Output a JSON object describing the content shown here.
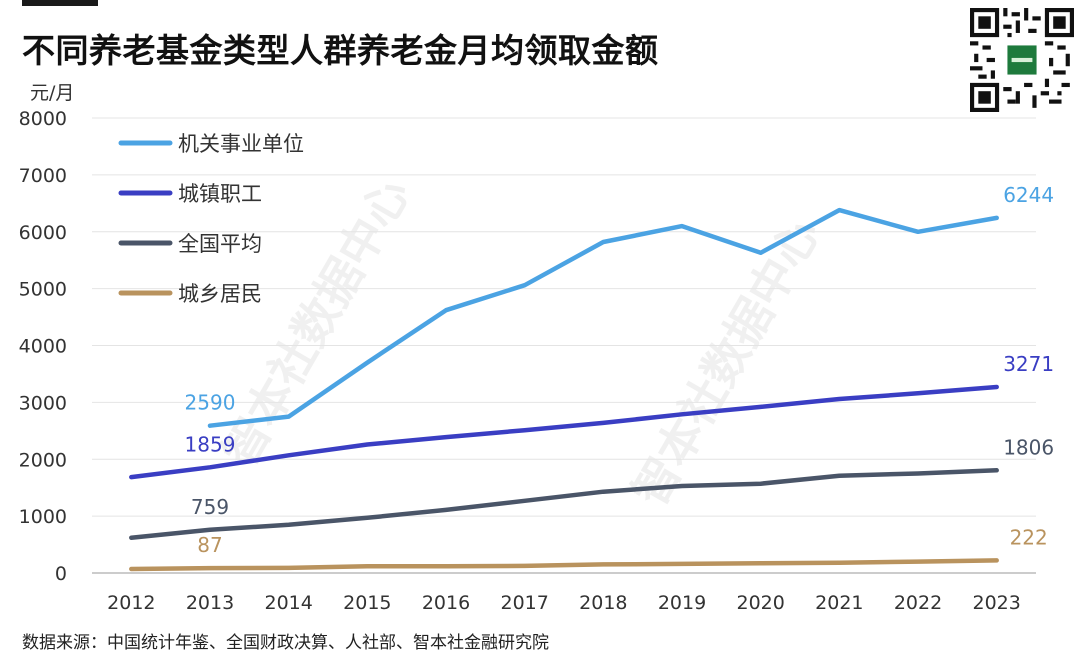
{
  "title": "不同养老基金类型人群养老金月均领取金额",
  "unit_label": "元/月",
  "source": "数据来源：中国统计年鉴、全国财政决算、人社部、智本社金融研究院",
  "watermark": "智本社数据中心",
  "chart_data": {
    "type": "line",
    "x": [
      2012,
      2013,
      2014,
      2015,
      2016,
      2017,
      2018,
      2019,
      2020,
      2021,
      2022,
      2023
    ],
    "ylim": [
      0,
      8000
    ],
    "yticks": [
      0,
      1000,
      2000,
      3000,
      4000,
      5000,
      6000,
      7000,
      8000
    ],
    "legend_position": "top-left",
    "grid": "horizontal",
    "series": [
      {
        "name": "机关事业单位",
        "color": "#4ba3e3",
        "values": [
          null,
          2590,
          2750,
          3700,
          4620,
          5060,
          5820,
          6100,
          5630,
          6380,
          6000,
          6244
        ],
        "labels": [
          {
            "index": 1,
            "text": "2590"
          },
          {
            "index": 11,
            "text": "6244"
          }
        ]
      },
      {
        "name": "城镇职工",
        "color": "#3a3ec3",
        "values": [
          1686,
          1859,
          2070,
          2260,
          2390,
          2510,
          2640,
          2790,
          2920,
          3060,
          3160,
          3271
        ],
        "labels": [
          {
            "index": 1,
            "text": "1859"
          },
          {
            "index": 11,
            "text": "3271"
          }
        ]
      },
      {
        "name": "全国平均",
        "color": "#4a5568",
        "values": [
          620,
          759,
          850,
          970,
          1110,
          1270,
          1430,
          1530,
          1570,
          1710,
          1750,
          1806
        ],
        "labels": [
          {
            "index": 1,
            "text": "759"
          },
          {
            "index": 11,
            "text": "1806"
          }
        ]
      },
      {
        "name": "城乡居民",
        "color": "#b9935e",
        "values": [
          70,
          87,
          90,
          117,
          118,
          125,
          152,
          160,
          172,
          179,
          200,
          222
        ],
        "labels": [
          {
            "index": 1,
            "text": "87"
          },
          {
            "index": 11,
            "text": "222"
          }
        ]
      }
    ]
  }
}
